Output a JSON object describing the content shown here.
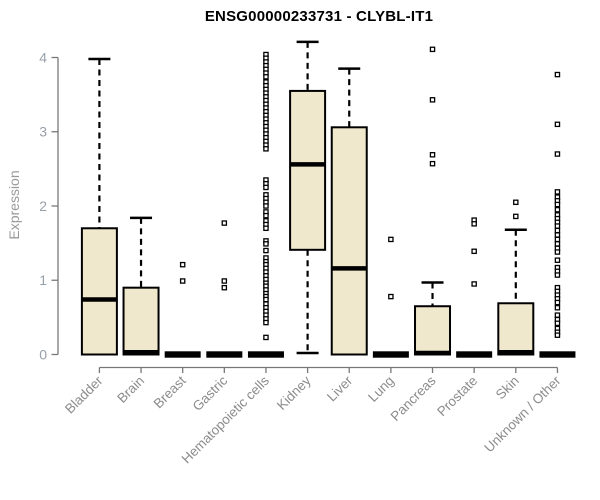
{
  "title": "ENSG00000233731 - CLYBL-IT1",
  "colors": {
    "background": "#ffffff",
    "box_fill": "#efe8cc",
    "box_stroke": "#000000",
    "median": "#000000",
    "whisker": "#000000",
    "outlier_fill": "#ffffff",
    "outlier_stroke": "#000000",
    "axis": "#787878",
    "y_tick_label": "#98a0a8",
    "x_tick_label": "#8c8c8c",
    "title_color": "#000000"
  },
  "chart_data": {
    "type": "boxplot",
    "title": "ENSG00000233731 - CLYBL-IT1",
    "xlabel": "",
    "ylabel": "Expression",
    "ylim": [
      0,
      4.25
    ],
    "yticks": [
      0,
      1,
      2,
      3,
      4
    ],
    "grid": false,
    "legend": "none",
    "categories": [
      "Bladder",
      "Brain",
      "Breast",
      "Gastric",
      "Hematopoietic cells",
      "Kidney",
      "Liver",
      "Lung",
      "Pancreas",
      "Prostate",
      "Skin",
      "Unknown / Other"
    ],
    "boxes": [
      {
        "label": "Bladder",
        "whisker_low": 0,
        "q1": 0,
        "median": 0.74,
        "q3": 1.7,
        "whisker_high": 3.98,
        "outliers": []
      },
      {
        "label": "Brain",
        "whisker_low": 0,
        "q1": 0,
        "median": 0.03,
        "q3": 0.9,
        "whisker_high": 1.84,
        "outliers": []
      },
      {
        "label": "Breast",
        "whisker_low": 0,
        "q1": 0,
        "median": 0,
        "q3": 0,
        "whisker_high": 0,
        "outliers": [
          1.21,
          0.99
        ]
      },
      {
        "label": "Gastric",
        "whisker_low": 0,
        "q1": 0,
        "median": 0,
        "q3": 0,
        "whisker_high": 0,
        "outliers": [
          1.77,
          0.99,
          0.9
        ]
      },
      {
        "label": "Hematopoietic cells",
        "whisker_low": 0,
        "q1": 0,
        "median": 0,
        "q3": 0,
        "whisker_high": 0,
        "outliers": [
          4.04,
          3.99,
          3.94,
          3.89,
          3.84,
          3.79,
          3.74,
          3.67,
          3.62,
          3.57,
          3.52,
          3.47,
          3.42,
          3.37,
          3.32,
          3.27,
          3.22,
          3.17,
          3.12,
          3.07,
          3.02,
          2.97,
          2.92,
          2.87,
          2.82,
          2.77,
          2.35,
          2.3,
          2.25,
          2.15,
          2.1,
          2.05,
          2.0,
          1.92,
          1.87,
          1.8,
          1.75,
          1.7,
          1.53,
          1.49,
          1.4,
          1.3,
          1.25,
          1.21,
          1.16,
          1.11,
          1.06,
          1.01,
          0.96,
          0.92,
          0.87,
          0.82,
          0.78,
          0.74,
          0.68,
          0.63,
          0.58,
          0.53,
          0.48,
          0.43,
          0.23
        ]
      },
      {
        "label": "Kidney",
        "whisker_low": 0.02,
        "q1": 1.41,
        "median": 2.56,
        "q3": 3.55,
        "whisker_high": 4.21,
        "outliers": []
      },
      {
        "label": "Liver",
        "whisker_low": 0,
        "q1": 0,
        "median": 1.16,
        "q3": 3.06,
        "whisker_high": 3.85,
        "outliers": []
      },
      {
        "label": "Lung",
        "whisker_low": 0,
        "q1": 0,
        "median": 0,
        "q3": 0,
        "whisker_high": 0,
        "outliers": [
          1.55,
          0.78
        ]
      },
      {
        "label": "Pancreas",
        "whisker_low": 0,
        "q1": 0,
        "median": 0.02,
        "q3": 0.65,
        "whisker_high": 0.97,
        "outliers": [
          4.11,
          3.43,
          2.69,
          2.57
        ]
      },
      {
        "label": "Prostate",
        "whisker_low": 0,
        "q1": 0,
        "median": 0,
        "q3": 0,
        "whisker_high": 0,
        "outliers": [
          1.81,
          1.76,
          1.39,
          0.95
        ]
      },
      {
        "label": "Skin",
        "whisker_low": 0,
        "q1": 0,
        "median": 0.03,
        "q3": 0.69,
        "whisker_high": 1.68,
        "outliers": [
          2.05,
          1.86
        ]
      },
      {
        "label": "Unknown / Other",
        "whisker_low": 0,
        "q1": 0,
        "median": 0,
        "q3": 0,
        "whisker_high": 0,
        "outliers": [
          3.77,
          3.1,
          2.7,
          2.19,
          2.12,
          2.07,
          2.02,
          1.95,
          1.88,
          1.83,
          1.78,
          1.73,
          1.67,
          1.61,
          1.55,
          1.49,
          1.43,
          1.38,
          1.27,
          1.17,
          1.12,
          1.07,
          0.9,
          0.85,
          0.8,
          0.75,
          0.7,
          0.63,
          0.53,
          0.47,
          0.42,
          0.35,
          0.3,
          0.26
        ]
      }
    ]
  }
}
